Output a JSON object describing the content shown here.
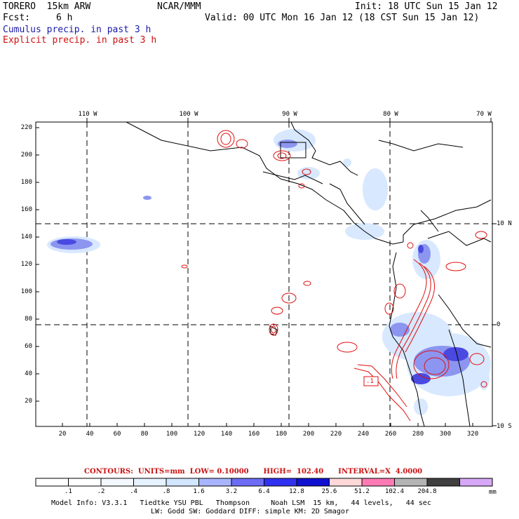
{
  "header": {
    "model": "TORERO  15km ARW",
    "org": "NCAR/MMM",
    "init": "Init: 18 UTC Sun 15 Jan 12",
    "fcst_label": "Fcst:",
    "fcst_value": "6 h",
    "valid": "Valid: 00 UTC Mon 16 Jan 12 (18 CST Sun 15 Jan 12)",
    "line_cumulus": "Cumulus precip. in past 3 h",
    "line_explicit": "Explicit precip. in past 3 h"
  },
  "map": {
    "top_lon_labels": [
      "110 W",
      "100 W",
      "90 W",
      "80 W",
      "70 W"
    ],
    "right_lat_labels": [
      "10 N",
      "0",
      "10 S"
    ],
    "y_grid_ticks": [
      "220",
      "200",
      "180",
      "160",
      "140",
      "120",
      "100",
      "80",
      "60",
      "40",
      "20"
    ],
    "x_grid_ticks": [
      "20",
      "40",
      "60",
      "80",
      "100",
      "120",
      "140",
      "160",
      "180",
      "200",
      "220",
      "240",
      "260",
      "280",
      "300",
      "320"
    ],
    "contour_marker": ".1",
    "colors": {
      "coast": "#000000",
      "grid": "#000000",
      "explicit_contour": "#e01010",
      "cumulus_light": "#d8e8ff",
      "cumulus_mid": "#8c96f0",
      "cumulus_dark": "#4a4ae0"
    }
  },
  "legend": {
    "contours_line": "CONTOURS:  UNITS=mm  LOW= 0.10000      HIGH=  102.40      INTERVAL=X  4.0000",
    "labels": [
      ".1",
      ".2",
      ".4",
      ".8",
      "1.6",
      "3.2",
      "6.4",
      "12.8",
      "25.6",
      "51.2",
      "102.4",
      "204.8"
    ],
    "unit": "mm",
    "colors": [
      "#ffffff",
      "#ffffff",
      "#f4f8ff",
      "#e6f2ff",
      "#d2e6ff",
      "#a8b4ff",
      "#6c6cf4",
      "#3030f0",
      "#1010d0",
      "#ffd8d8",
      "#ff7ab4",
      "#b4b4b4",
      "#404040",
      "#d8a8f8"
    ]
  },
  "footer": {
    "line1": "Model Info: V3.3.1   Tiedtke YSU PBL   Thompson     Noah LSM  15 km,   44 levels,   44 sec",
    "line2": "LW: Godd SW: Goddard DIFF: simple KM: 2D Smagor"
  }
}
